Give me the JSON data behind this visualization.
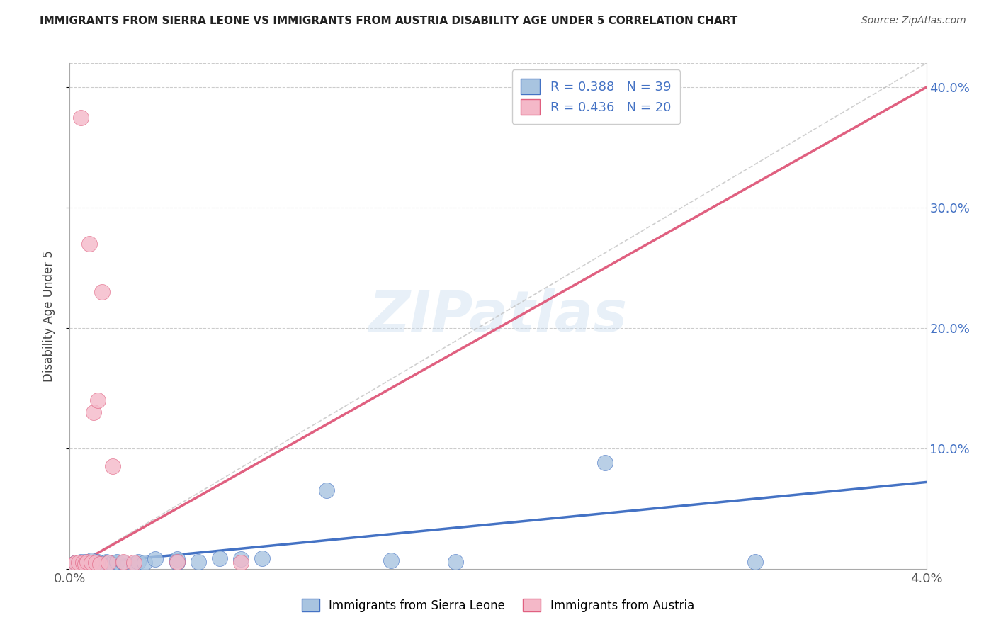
{
  "title": "IMMIGRANTS FROM SIERRA LEONE VS IMMIGRANTS FROM AUSTRIA DISABILITY AGE UNDER 5 CORRELATION CHART",
  "source_text": "Source: ZipAtlas.com",
  "ylabel": "Disability Age Under 5",
  "xmin": 0.0,
  "xmax": 0.04,
  "ymin": 0.0,
  "ymax": 0.42,
  "yticks": [
    0.0,
    0.1,
    0.2,
    0.3,
    0.4
  ],
  "ytick_labels": [
    "",
    "10.0%",
    "20.0%",
    "30.0%",
    "40.0%"
  ],
  "xtick_labels": [
    "0.0%",
    "4.0%"
  ],
  "legend_r1": "R = 0.388",
  "legend_n1": "N = 39",
  "legend_r2": "R = 0.436",
  "legend_n2": "N = 20",
  "color_sierra": "#a8c4e0",
  "color_austria": "#f4b8c8",
  "color_trend_sierra": "#4472c4",
  "color_trend_austria": "#e06080",
  "color_diagonal": "#c0c0c0",
  "color_legend_text": "#4472c4",
  "watermark_text": "ZIPatlas",
  "sierra_leone_x": [
    0.0002,
    0.0003,
    0.0004,
    0.0005,
    0.0005,
    0.0006,
    0.0007,
    0.0008,
    0.0009,
    0.001,
    0.001,
    0.0011,
    0.0012,
    0.0013,
    0.0014,
    0.0015,
    0.0016,
    0.0017,
    0.0018,
    0.002,
    0.002,
    0.0022,
    0.0025,
    0.003,
    0.003,
    0.0032,
    0.0035,
    0.004,
    0.005,
    0.005,
    0.006,
    0.007,
    0.008,
    0.009,
    0.012,
    0.015,
    0.018,
    0.025,
    0.032
  ],
  "sierra_leone_y": [
    0.004,
    0.005,
    0.003,
    0.005,
    0.006,
    0.004,
    0.006,
    0.005,
    0.004,
    0.005,
    0.007,
    0.005,
    0.004,
    0.006,
    0.003,
    0.005,
    0.004,
    0.006,
    0.005,
    0.005,
    0.004,
    0.006,
    0.005,
    0.003,
    0.004,
    0.006,
    0.005,
    0.008,
    0.008,
    0.005,
    0.006,
    0.009,
    0.008,
    0.009,
    0.065,
    0.007,
    0.006,
    0.088,
    0.006
  ],
  "austria_x": [
    0.0002,
    0.0003,
    0.0004,
    0.0005,
    0.0006,
    0.0007,
    0.0008,
    0.0009,
    0.001,
    0.0011,
    0.0012,
    0.0013,
    0.0014,
    0.0015,
    0.0018,
    0.002,
    0.0025,
    0.003,
    0.005,
    0.008
  ],
  "austria_y": [
    0.004,
    0.005,
    0.005,
    0.375,
    0.005,
    0.004,
    0.006,
    0.27,
    0.005,
    0.13,
    0.005,
    0.14,
    0.004,
    0.23,
    0.005,
    0.085,
    0.006,
    0.005,
    0.006,
    0.005
  ],
  "trend_sierra_x0": 0.0,
  "trend_sierra_x1": 0.04,
  "trend_sierra_y0": 0.003,
  "trend_sierra_y1": 0.072,
  "trend_austria_x0": 0.0,
  "trend_austria_x1": 0.04,
  "trend_austria_y0": 0.0,
  "trend_austria_y1": 0.4
}
